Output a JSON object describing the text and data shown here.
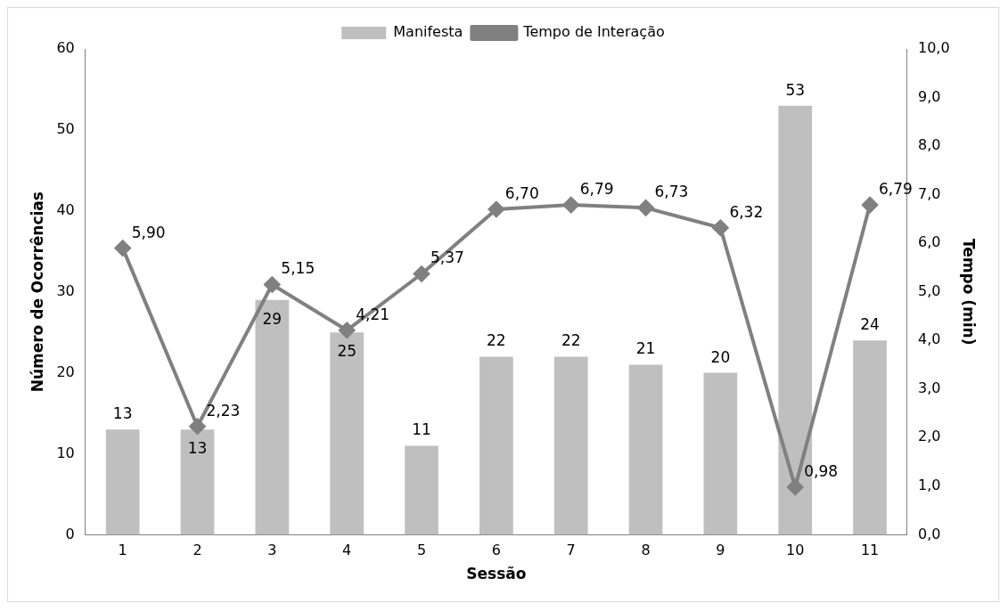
{
  "chart_data": {
    "type": "bar",
    "xlabel": "Sessão",
    "ylabel": "Número de Ocorrências",
    "y2label": "Tempo (min)",
    "categories": [
      "1",
      "2",
      "3",
      "4",
      "5",
      "6",
      "7",
      "8",
      "9",
      "10",
      "11"
    ],
    "series": [
      {
        "name": "Manifesta",
        "color": "#bfbfbf",
        "values": [
          13,
          13,
          29,
          25,
          11,
          22,
          22,
          21,
          20,
          53,
          24
        ],
        "value_labels": [
          "13",
          "13",
          "29",
          "25",
          "11",
          "22",
          "22",
          "21",
          "20",
          "53",
          "24"
        ]
      },
      {
        "name": "Tempo de Interação",
        "type": "line",
        "axis": "y2",
        "color": "#808080",
        "marker": "diamond",
        "values": [
          5.9,
          2.23,
          5.15,
          4.21,
          5.37,
          6.7,
          6.79,
          6.73,
          6.32,
          0.98,
          6.79
        ],
        "value_labels": [
          "5,90",
          "2,23",
          "5,15",
          "4,21",
          "5,37",
          "6,70",
          "6,79",
          "6,73",
          "6,32",
          "0,98",
          "6,79"
        ]
      }
    ],
    "ylim": [
      0,
      60
    ],
    "yticks": [
      0,
      10,
      20,
      30,
      40,
      50,
      60
    ],
    "y2lim": [
      0,
      10
    ],
    "y2ticks": [
      {
        "value": 0,
        "label": "0,0"
      },
      {
        "value": 1,
        "label": "1,0"
      },
      {
        "value": 2,
        "label": "2,0"
      },
      {
        "value": 3,
        "label": "3,0"
      },
      {
        "value": 4,
        "label": "4,0"
      },
      {
        "value": 5,
        "label": "5,0"
      },
      {
        "value": 6,
        "label": "6,0"
      },
      {
        "value": 7,
        "label": "7,0"
      },
      {
        "value": 8,
        "label": "8,0"
      },
      {
        "value": 9,
        "label": "9,0"
      },
      {
        "value": 10,
        "label": "10,0"
      }
    ],
    "grid": false,
    "legend": "top"
  }
}
